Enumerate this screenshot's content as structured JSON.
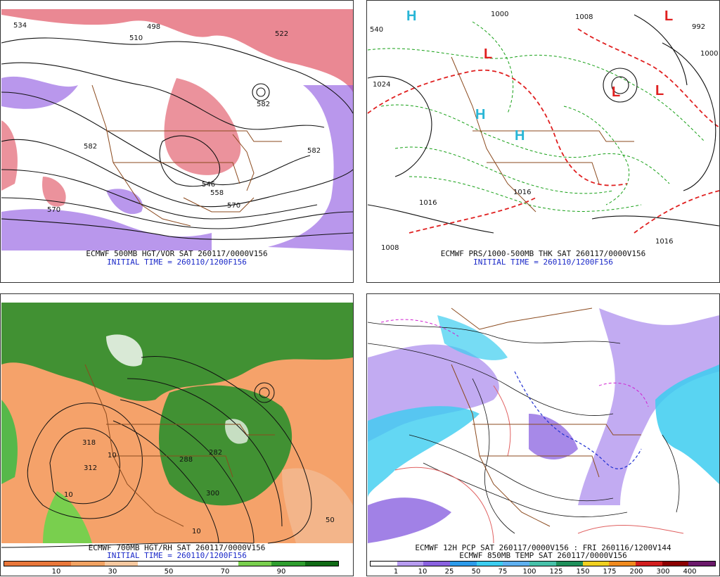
{
  "panels": {
    "top_left": {
      "caption_line1": "ECMWF 500MB HGT/VOR SAT 260117/0000V156",
      "caption_line2": "INITIAL TIME = 260110/1200F156",
      "contour_labels": [
        "534",
        "510",
        "498",
        "522",
        "582",
        "582",
        "570",
        "558",
        "546",
        "570",
        "582"
      ]
    },
    "top_right": {
      "caption_line1": "ECMWF PRS/1000-500MB THK SAT 260117/0000V156",
      "caption_line2": "INITIAL TIME = 260110/1200F156",
      "contour_labels": [
        "1000",
        "1008",
        "1024",
        "1016",
        "1016",
        "1008",
        "1016",
        "992",
        "1000",
        "540"
      ],
      "pressure_marks": [
        "L",
        "L",
        "L",
        "L",
        "H",
        "H",
        "H"
      ]
    },
    "bottom_left": {
      "caption_line1": "ECMWF 700MB HGT/RH SAT 260117/0000V156",
      "caption_line2": "INITIAL TIME = 260110/1200F156",
      "contour_labels": [
        "318",
        "312",
        "282",
        "288",
        "300",
        "10",
        "10",
        "50",
        "10"
      ],
      "scale_ticks": [
        "10",
        "30",
        "50",
        "70",
        "90"
      ]
    },
    "bottom_right": {
      "caption_line1": "ECMWF 12H PCP SAT 260117/0000V156 : FRI 260116/1200V144",
      "caption_line2": "ECMWF 850MB TEMP SAT 260117/0000V156",
      "scale_ticks": [
        "1",
        "10",
        "25",
        "50",
        "75",
        "100",
        "125",
        "150",
        "175",
        "200",
        "300",
        "400"
      ]
    }
  },
  "colors": {
    "rh_scale": [
      "#ffffff",
      "#e9773a",
      "#f1a262",
      "#f7c9a0",
      "#ffffff",
      "#ffffff",
      "#ffffff",
      "#79cf4e",
      "#2f9e2f",
      "#106b16"
    ],
    "pcp_scale": [
      "#ffffff",
      "#b79cf0",
      "#8a62e0",
      "#2c9bea",
      "#3ccdf0",
      "#5fb0f0",
      "#47c1a9",
      "#1e8f5a",
      "#f0d020",
      "#f08a1e",
      "#d21e1e",
      "#8b0000",
      "#6b1a6b"
    ],
    "vort_warm": "#d8263a",
    "vort_cold": "#8a52e0",
    "map_borders": "#8b4a1e",
    "thickness_cold": "#16a016",
    "thickness_warm": "#e02020"
  }
}
